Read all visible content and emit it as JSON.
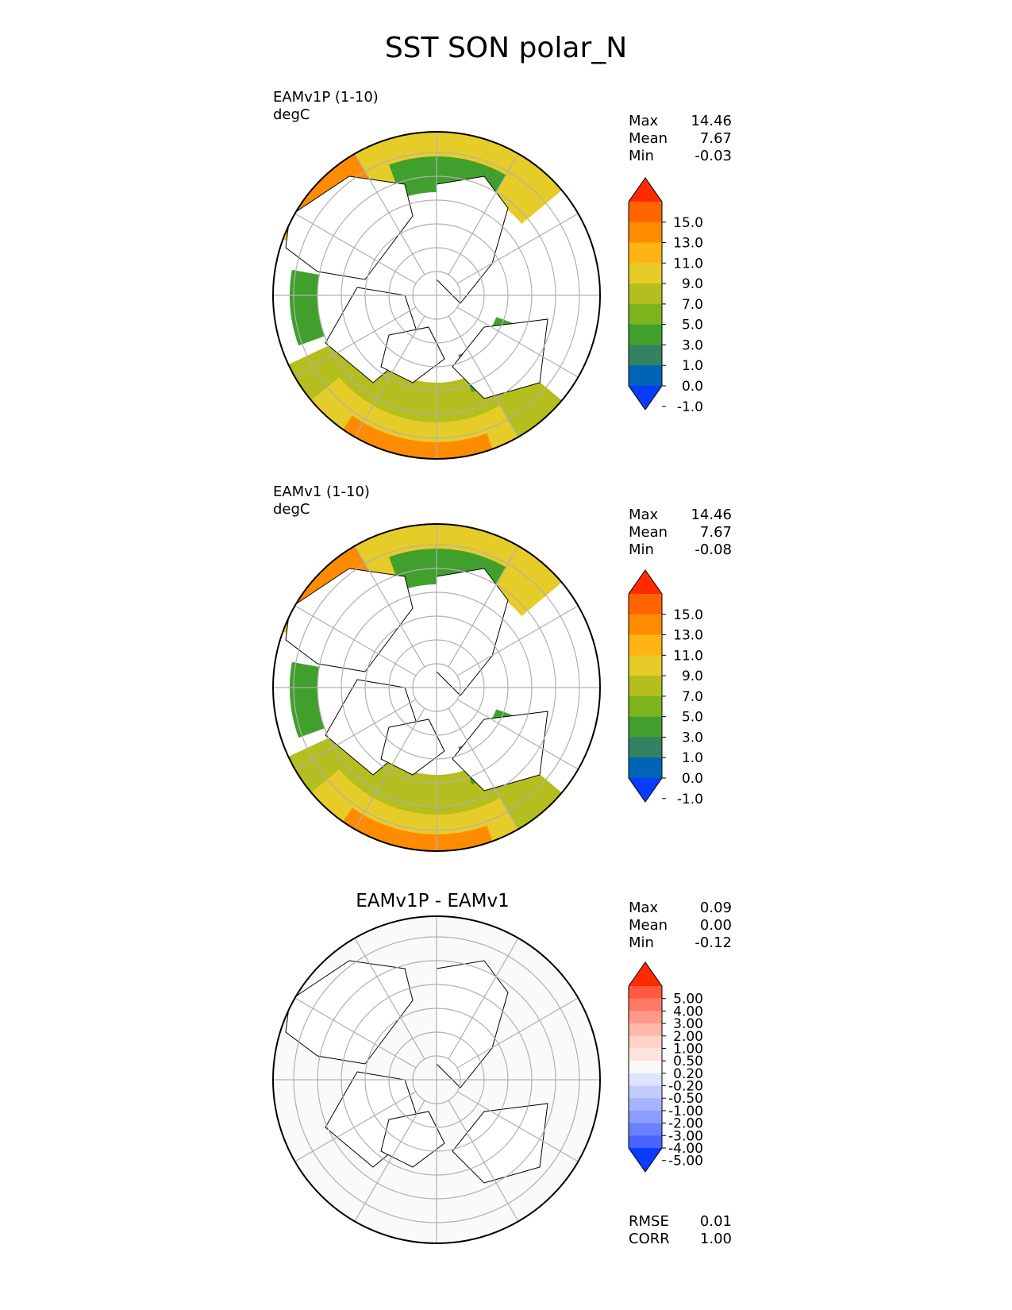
{
  "figure": {
    "title": "SST SON polar_N"
  },
  "chart_data": [
    {
      "type": "heatmap",
      "projection": "north-polar-stereographic",
      "title": "",
      "case": "EAMv1P (1-10)",
      "units": "degC",
      "stats": [
        {
          "label": "Max",
          "value": "14.46"
        },
        {
          "label": "Mean",
          "value": "7.67"
        },
        {
          "label": "Min",
          "value": "-0.03"
        }
      ],
      "colorbar": {
        "ticks": [
          "15.0",
          "13.0",
          "11.0",
          "9.0",
          "7.0",
          "5.0",
          "3.0",
          "1.0",
          "0.0",
          "-1.0"
        ],
        "colors": [
          "#ff2a00",
          "#ff6400",
          "#ff8c00",
          "#ffb414",
          "#e6cc28",
          "#b4be1e",
          "#7db41e",
          "#41a02d",
          "#328264",
          "#0064b4",
          "#0a3cff"
        ],
        "extend": "both"
      },
      "fill_colors": {
        "land": "#ffffff",
        "warm": "#ff8c00",
        "mid": "#e6cc28",
        "cool": "#b4be1e",
        "cold": "#41a02d"
      }
    },
    {
      "type": "heatmap",
      "projection": "north-polar-stereographic",
      "title": "",
      "case": "EAMv1 (1-10)",
      "units": "degC",
      "stats": [
        {
          "label": "Max",
          "value": "14.46"
        },
        {
          "label": "Mean",
          "value": "7.67"
        },
        {
          "label": "Min",
          "value": "-0.08"
        }
      ],
      "colorbar": {
        "ticks": [
          "15.0",
          "13.0",
          "11.0",
          "9.0",
          "7.0",
          "5.0",
          "3.0",
          "1.0",
          "0.0",
          "-1.0"
        ],
        "colors": [
          "#ff2a00",
          "#ff6400",
          "#ff8c00",
          "#ffb414",
          "#e6cc28",
          "#b4be1e",
          "#7db41e",
          "#41a02d",
          "#328264",
          "#0064b4",
          "#0a3cff"
        ],
        "extend": "both"
      },
      "fill_colors": {
        "land": "#ffffff",
        "warm": "#ff8c00",
        "mid": "#e6cc28",
        "cool": "#b4be1e",
        "cold": "#41a02d"
      }
    },
    {
      "type": "heatmap",
      "projection": "north-polar-stereographic",
      "title": "EAMv1P - EAMv1",
      "case": "",
      "units": "",
      "stats": [
        {
          "label": "Max",
          "value": "0.09"
        },
        {
          "label": "Mean",
          "value": "0.00"
        },
        {
          "label": "Min",
          "value": "-0.12"
        }
      ],
      "footer_stats": [
        {
          "label": "RMSE",
          "value": "0.01"
        },
        {
          "label": "CORR",
          "value": "1.00"
        }
      ],
      "colorbar": {
        "ticks": [
          "5.00",
          "4.00",
          "3.00",
          "2.00",
          "1.00",
          "0.50",
          "0.20",
          "-0.20",
          "-0.50",
          "-1.00",
          "-2.00",
          "-3.00",
          "-4.00",
          "-5.00"
        ],
        "colors": [
          "#ff2a00",
          "#ff5a40",
          "#ff7a66",
          "#ff9a8a",
          "#ffb8aa",
          "#ffd2c8",
          "#fbe4e0",
          "#fafafa",
          "#dfe4ff",
          "#c4ccff",
          "#a8b4ff",
          "#8c9cff",
          "#6a80ff",
          "#4a64ff",
          "#0a3cff"
        ],
        "extend": "both"
      },
      "fill_colors": {
        "land": "#ffffff",
        "ocean": "#fafafa"
      }
    }
  ]
}
